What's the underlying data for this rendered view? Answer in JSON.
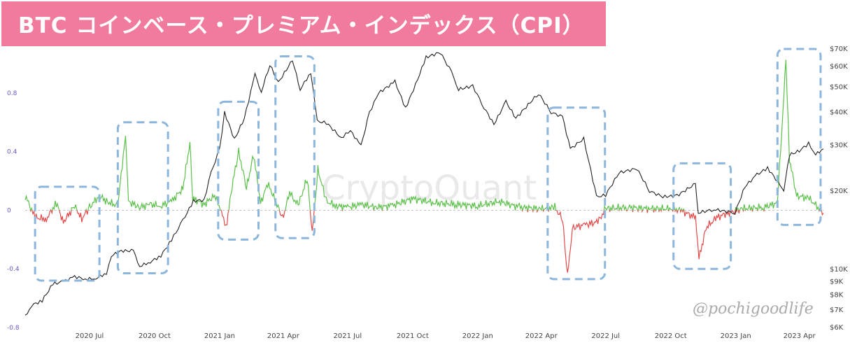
{
  "title": "BTC コインベース・プレミアム・インデックス（CPI）",
  "watermark": "CryptoQuant",
  "credit": "@pochigoodlife",
  "colors": {
    "premium_positive": "#5cc04a",
    "premium_negative": "#e24a4a",
    "price": "#222222",
    "highlight_box": "#8cb6dc",
    "banner": "#f07b9d"
  },
  "chart_data": {
    "type": "line",
    "x_range": [
      "2020-04-01",
      "2023-05-05"
    ],
    "x_ticks": [
      {
        "date": "2020-07-01",
        "label": "2020 Jul"
      },
      {
        "date": "2020-10-01",
        "label": "2020 Oct"
      },
      {
        "date": "2021-01-01",
        "label": "2021 Jan"
      },
      {
        "date": "2021-04-01",
        "label": "2021 Apr"
      },
      {
        "date": "2021-07-01",
        "label": "2021 Jul"
      },
      {
        "date": "2021-10-01",
        "label": "2021 Oct"
      },
      {
        "date": "2022-01-01",
        "label": "2022 Jan"
      },
      {
        "date": "2022-04-01",
        "label": "2022 Apr"
      },
      {
        "date": "2022-07-01",
        "label": "2022 Jul"
      },
      {
        "date": "2022-10-01",
        "label": "2022 Oct"
      },
      {
        "date": "2023-01-01",
        "label": "2023 Jan"
      },
      {
        "date": "2023-04-01",
        "label": "2023 Apr"
      }
    ],
    "left_axis": {
      "ticks": [
        -0.8,
        -0.4,
        0,
        0.4,
        0.8
      ],
      "ylim": [
        -0.8,
        1.1
      ]
    },
    "right_axis": {
      "scale": "log",
      "ticks": [
        {
          "value": 6000,
          "label": "$6K"
        },
        {
          "value": 7000,
          "label": "$7K"
        },
        {
          "value": 8000,
          "label": "$8K"
        },
        {
          "value": 9000,
          "label": "$9K"
        },
        {
          "value": 10000,
          "label": "$10K"
        },
        {
          "value": 20000,
          "label": "$20K"
        },
        {
          "value": 30000,
          "label": "$30K"
        },
        {
          "value": 40000,
          "label": "$40K"
        },
        {
          "value": 50000,
          "label": "$50K"
        },
        {
          "value": 60000,
          "label": "$60K"
        },
        {
          "value": 70000,
          "label": "$70K"
        }
      ],
      "ylim": [
        6000,
        70000
      ]
    },
    "series": [
      {
        "axis": "right",
        "points": [
          [
            "2020-04-01",
            6600
          ],
          [
            "2020-04-10",
            7300
          ],
          [
            "2020-04-25",
            7600
          ],
          [
            "2020-05-10",
            8800
          ],
          [
            "2020-05-25",
            9000
          ],
          [
            "2020-06-10",
            9400
          ],
          [
            "2020-06-25",
            9200
          ],
          [
            "2020-07-10",
            9250
          ],
          [
            "2020-07-25",
            9700
          ],
          [
            "2020-08-01",
            11300
          ],
          [
            "2020-08-15",
            11800
          ],
          [
            "2020-09-01",
            11800
          ],
          [
            "2020-09-10",
            10300
          ],
          [
            "2020-09-25",
            10700
          ],
          [
            "2020-10-10",
            11300
          ],
          [
            "2020-10-25",
            13000
          ],
          [
            "2020-11-10",
            15400
          ],
          [
            "2020-11-25",
            18300
          ],
          [
            "2020-12-10",
            18500
          ],
          [
            "2020-12-20",
            23500
          ],
          [
            "2021-01-01",
            29000
          ],
          [
            "2021-01-08",
            40000
          ],
          [
            "2021-01-22",
            31500
          ],
          [
            "2021-02-05",
            38000
          ],
          [
            "2021-02-20",
            56000
          ],
          [
            "2021-03-01",
            48000
          ],
          [
            "2021-03-13",
            61000
          ],
          [
            "2021-03-25",
            52000
          ],
          [
            "2021-04-14",
            63500
          ],
          [
            "2021-04-25",
            49000
          ],
          [
            "2021-05-10",
            57000
          ],
          [
            "2021-05-19",
            37000
          ],
          [
            "2021-06-01",
            36500
          ],
          [
            "2021-06-22",
            32000
          ],
          [
            "2021-07-05",
            34000
          ],
          [
            "2021-07-20",
            29800
          ],
          [
            "2021-08-01",
            40000
          ],
          [
            "2021-08-14",
            47500
          ],
          [
            "2021-09-06",
            52500
          ],
          [
            "2021-09-21",
            41500
          ],
          [
            "2021-10-05",
            51000
          ],
          [
            "2021-10-20",
            65000
          ],
          [
            "2021-11-09",
            68000
          ],
          [
            "2021-11-25",
            57000
          ],
          [
            "2021-12-05",
            49000
          ],
          [
            "2021-12-25",
            50500
          ],
          [
            "2022-01-10",
            41800
          ],
          [
            "2022-01-24",
            36000
          ],
          [
            "2022-02-10",
            44000
          ],
          [
            "2022-02-24",
            38000
          ],
          [
            "2022-03-28",
            47300
          ],
          [
            "2022-04-15",
            40000
          ],
          [
            "2022-05-01",
            38500
          ],
          [
            "2022-05-12",
            29000
          ],
          [
            "2022-05-31",
            31700
          ],
          [
            "2022-06-13",
            22000
          ],
          [
            "2022-06-18",
            19000
          ],
          [
            "2022-07-01",
            19300
          ],
          [
            "2022-07-20",
            23500
          ],
          [
            "2022-08-14",
            24400
          ],
          [
            "2022-09-01",
            20000
          ],
          [
            "2022-09-20",
            19000
          ],
          [
            "2022-10-10",
            19200
          ],
          [
            "2022-11-05",
            21300
          ],
          [
            "2022-11-09",
            16500
          ],
          [
            "2022-12-01",
            17000
          ],
          [
            "2022-12-31",
            16500
          ],
          [
            "2023-01-14",
            20800
          ],
          [
            "2023-01-31",
            23100
          ],
          [
            "2023-02-15",
            24500
          ],
          [
            "2023-03-10",
            20200
          ],
          [
            "2023-03-18",
            27500
          ],
          [
            "2023-04-01",
            28500
          ],
          [
            "2023-04-14",
            30400
          ],
          [
            "2023-04-24",
            27600
          ],
          [
            "2023-05-05",
            29000
          ]
        ]
      },
      {
        "axis": "left",
        "points": [
          [
            "2020-04-01",
            0.1
          ],
          [
            "2020-04-15",
            -0.05
          ],
          [
            "2020-05-01",
            -0.06
          ],
          [
            "2020-05-15",
            0.05
          ],
          [
            "2020-05-25",
            -0.08
          ],
          [
            "2020-06-10",
            0.03
          ],
          [
            "2020-06-20",
            -0.06
          ],
          [
            "2020-07-01",
            0.02
          ],
          [
            "2020-07-15",
            0.1
          ],
          [
            "2020-07-25",
            0.06
          ],
          [
            "2020-08-10",
            0.03
          ],
          [
            "2020-08-21",
            0.52
          ],
          [
            "2020-08-25",
            0.06
          ],
          [
            "2020-09-10",
            0.02
          ],
          [
            "2020-09-25",
            0.04
          ],
          [
            "2020-10-10",
            0.03
          ],
          [
            "2020-10-25",
            0.06
          ],
          [
            "2020-11-10",
            0.15
          ],
          [
            "2020-11-20",
            0.46
          ],
          [
            "2020-11-24",
            0.08
          ],
          [
            "2020-12-10",
            0.04
          ],
          [
            "2020-12-25",
            0.1
          ],
          [
            "2021-01-05",
            -0.02
          ],
          [
            "2021-01-10",
            -0.12
          ],
          [
            "2021-01-20",
            0.2
          ],
          [
            "2021-01-28",
            0.4
          ],
          [
            "2021-02-08",
            0.15
          ],
          [
            "2021-02-18",
            0.38
          ],
          [
            "2021-02-28",
            0.05
          ],
          [
            "2021-03-10",
            0.18
          ],
          [
            "2021-03-20",
            0.08
          ],
          [
            "2021-03-31",
            -0.06
          ],
          [
            "2021-04-10",
            0.12
          ],
          [
            "2021-04-22",
            0.03
          ],
          [
            "2021-05-05",
            0.22
          ],
          [
            "2021-05-12",
            -0.16
          ],
          [
            "2021-05-20",
            0.28
          ],
          [
            "2021-06-01",
            0.06
          ],
          [
            "2021-06-15",
            0.03
          ],
          [
            "2021-07-01",
            0.02
          ],
          [
            "2021-07-20",
            0.04
          ],
          [
            "2021-08-10",
            0.02
          ],
          [
            "2021-09-01",
            0.03
          ],
          [
            "2021-10-01",
            0.08
          ],
          [
            "2021-11-01",
            0.05
          ],
          [
            "2021-12-01",
            0.04
          ],
          [
            "2022-01-01",
            0.03
          ],
          [
            "2022-02-01",
            0.06
          ],
          [
            "2022-03-01",
            0.02
          ],
          [
            "2022-04-01",
            0.01
          ],
          [
            "2022-04-20",
            0.02
          ],
          [
            "2022-05-01",
            -0.06
          ],
          [
            "2022-05-08",
            -0.45
          ],
          [
            "2022-05-15",
            -0.12
          ],
          [
            "2022-06-01",
            -0.1
          ],
          [
            "2022-06-20",
            -0.08
          ],
          [
            "2022-07-01",
            0.01
          ],
          [
            "2022-08-01",
            0.02
          ],
          [
            "2022-09-01",
            0.01
          ],
          [
            "2022-10-01",
            0.01
          ],
          [
            "2022-10-15",
            0.0
          ],
          [
            "2022-11-05",
            -0.05
          ],
          [
            "2022-11-10",
            -0.33
          ],
          [
            "2022-11-20",
            -0.12
          ],
          [
            "2022-12-05",
            -0.05
          ],
          [
            "2022-12-20",
            -0.02
          ],
          [
            "2023-01-10",
            0.01
          ],
          [
            "2023-02-10",
            0.02
          ],
          [
            "2023-03-01",
            0.05
          ],
          [
            "2023-03-13",
            1.02
          ],
          [
            "2023-03-18",
            0.35
          ],
          [
            "2023-03-28",
            0.1
          ],
          [
            "2023-04-15",
            0.08
          ],
          [
            "2023-05-05",
            -0.02
          ]
        ]
      }
    ],
    "highlight_periods": [
      {
        "from": "2020-04-15",
        "to": "2020-07-15",
        "ymin": -0.48,
        "ymax": 0.16
      },
      {
        "from": "2020-08-10",
        "to": "2020-10-20",
        "ymin": -0.43,
        "ymax": 0.6
      },
      {
        "from": "2020-12-30",
        "to": "2021-02-25",
        "ymin": -0.2,
        "ymax": 0.74
      },
      {
        "from": "2021-03-21",
        "to": "2021-05-15",
        "ymin": -0.19,
        "ymax": 1.05
      },
      {
        "from": "2022-04-10",
        "to": "2022-06-30",
        "ymin": -0.47,
        "ymax": 0.7
      },
      {
        "from": "2022-10-05",
        "to": "2022-12-25",
        "ymin": -0.4,
        "ymax": 0.32
      },
      {
        "from": "2023-03-01",
        "to": "2023-05-01",
        "ymin": -0.1,
        "ymax": 1.1
      }
    ]
  }
}
